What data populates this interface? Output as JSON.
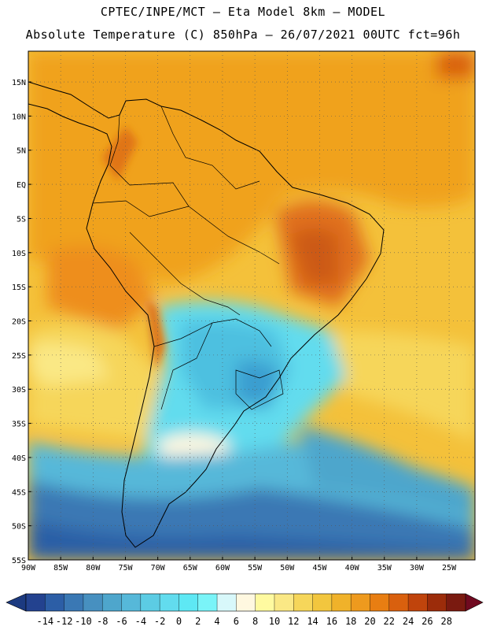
{
  "title_line1": "CPTEC/INPE/MCT –  Eta Model 8km – MODEL",
  "title_line2": "Absolute Temperature (C) 850hPa – 26/07/2021 00UTC fct=96h",
  "lat_labels": [
    "15N",
    "10N",
    "5N",
    "EQ",
    "5S",
    "10S",
    "15S",
    "20S",
    "25S",
    "30S",
    "35S",
    "40S",
    "45S",
    "50S",
    "55S"
  ],
  "lat_values": [
    15,
    10,
    5,
    0,
    -5,
    -10,
    -15,
    -20,
    -25,
    -30,
    -35,
    -40,
    -45,
    -50,
    -55
  ],
  "lon_labels": [
    "90W",
    "85W",
    "80W",
    "75W",
    "70W",
    "65W",
    "60W",
    "55W",
    "50W",
    "45W",
    "40W",
    "35W",
    "30W",
    "25W"
  ],
  "lon_values": [
    -90,
    -85,
    -80,
    -75,
    -70,
    -65,
    -60,
    -55,
    -50,
    -45,
    -40,
    -35,
    -30,
    -25
  ],
  "colorbar": {
    "labels": [
      "-14",
      "-12",
      "-10",
      "-8",
      "-6",
      "-4",
      "-2",
      "0",
      "2",
      "4",
      "6",
      "8",
      "10",
      "12",
      "14",
      "16",
      "18",
      "20",
      "22",
      "24",
      "26",
      "28"
    ],
    "colors": [
      "#23428f",
      "#2c5ea6",
      "#3a78b4",
      "#4790c0",
      "#4ea6cc",
      "#56b8d9",
      "#5ccce4",
      "#62dcee",
      "#5ee8f4",
      "#7af4f8",
      "#d8f8fa",
      "#fff8e0",
      "#fffaa0",
      "#fae885",
      "#f6d65a",
      "#f2c63e",
      "#f0b22a",
      "#ee9a1e",
      "#e87e12",
      "#d9600e",
      "#c0440c",
      "#9c2c0a",
      "#7a1a10"
    ],
    "low_color": "#1c3a80",
    "high_color": "#700a20"
  }
}
